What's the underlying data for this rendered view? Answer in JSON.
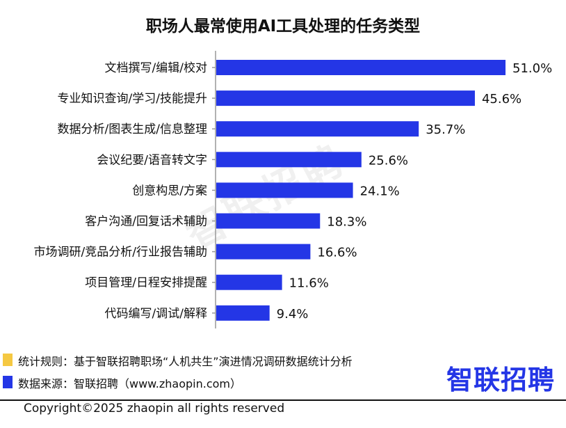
{
  "chart_data": {
    "type": "bar",
    "orientation": "horizontal",
    "title": "职场人最常使用AI工具处理的任务类型",
    "categories": [
      "文档撰写/编辑/校对",
      "专业知识查询/学习/技能提升",
      "数据分析/图表生成/信息整理",
      "会议纪要/语音转文字",
      "创意构思/方案",
      "客户沟通/回复话术辅助",
      "市场调研/竞品分析/行业报告辅助",
      "项目管理/日程安排提醒",
      "代码编写/调试/解释"
    ],
    "values": [
      51.0,
      45.6,
      35.7,
      25.6,
      24.1,
      18.3,
      16.6,
      11.6,
      9.4
    ],
    "value_labels": [
      "51.0%",
      "45.6%",
      "35.7%",
      "25.6%",
      "24.1%",
      "18.3%",
      "16.6%",
      "11.6%",
      "9.4%"
    ],
    "xlim": [
      0,
      51
    ],
    "bar_color": "#2436e6",
    "grid": false
  },
  "watermark": "智联招聘",
  "notes": {
    "rule": "统计规则：基于智联招聘职场“人机共生”演进情况调研数据统计分析",
    "source": "数据来源：智联招聘（www.zhaopin.com）",
    "rule_marker_color": "#f5c842",
    "source_marker_color": "#2436e6"
  },
  "logo": "智联招聘",
  "logo_color": "#2436e6",
  "copyright": "Copyright©2025 zhaopin all rights reserved"
}
